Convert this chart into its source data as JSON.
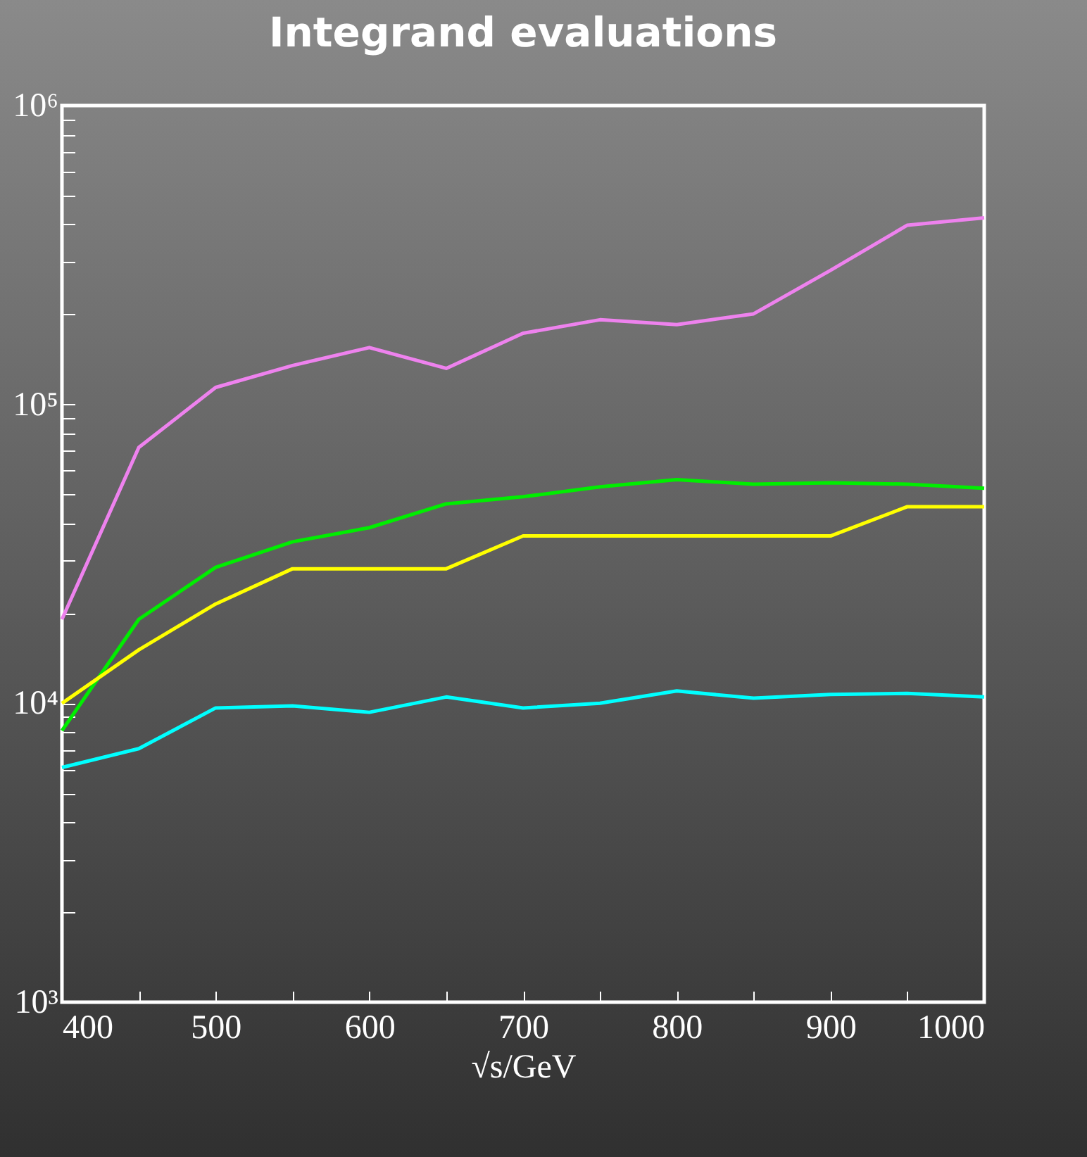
{
  "chart_data": {
    "type": "line",
    "title": "Integrand evaluations",
    "xlabel": "√s/GeV",
    "x": [
      400,
      450,
      500,
      550,
      600,
      650,
      700,
      750,
      800,
      850,
      900,
      950,
      1000
    ],
    "series": [
      {
        "color": "#ee82ee",
        "values": [
          19100,
          71800,
          114000,
          135000,
          155000,
          132000,
          173000,
          192000,
          185000,
          201000,
          281000,
          398000,
          421000
        ]
      },
      {
        "color": "#00ee00",
        "values": [
          8100,
          19100,
          28500,
          34700,
          38700,
          46500,
          49100,
          53000,
          56000,
          54100,
          54700,
          54100,
          52400
        ]
      },
      {
        "color": "#ffff00",
        "values": [
          10000,
          15100,
          21500,
          28200,
          28200,
          28200,
          36300,
          36300,
          36300,
          36300,
          36300,
          45500,
          45500
        ]
      },
      {
        "color": "#00ffff",
        "values": [
          6100,
          7050,
          9650,
          9800,
          9330,
          10500,
          9650,
          10000,
          11000,
          10400,
          10700,
          10800,
          10500
        ]
      }
    ],
    "log": "y",
    "xlim": [
      400,
      1000
    ],
    "ylim": [
      1000,
      1000000
    ],
    "xticks": [
      400,
      {
        "value": 450,
        "label": null
      },
      500,
      {
        "value": 550,
        "label": null
      },
      600,
      {
        "value": 650,
        "label": null
      },
      700,
      {
        "value": 750,
        "label": null
      },
      800,
      {
        "value": 850,
        "label": null
      },
      900,
      {
        "value": 950,
        "label": null
      },
      1000
    ],
    "yticks": [
      {
        "value": 1000,
        "label": "10³"
      },
      {
        "value": 2000,
        "label": null
      },
      {
        "value": 3000,
        "label": null
      },
      {
        "value": 4000,
        "label": null
      },
      {
        "value": 5000,
        "label": null
      },
      {
        "value": 6000,
        "label": null
      },
      {
        "value": 7000,
        "label": null
      },
      {
        "value": 8000,
        "label": null
      },
      {
        "value": 9000,
        "label": null
      },
      {
        "value": 10000,
        "label": "10⁴"
      },
      {
        "value": 20000,
        "label": null
      },
      {
        "value": 30000,
        "label": null
      },
      {
        "value": 40000,
        "label": null
      },
      {
        "value": 50000,
        "label": null
      },
      {
        "value": 60000,
        "label": null
      },
      {
        "value": 70000,
        "label": null
      },
      {
        "value": 80000,
        "label": null
      },
      {
        "value": 90000,
        "label": null
      },
      {
        "value": 100000,
        "label": "10⁵"
      },
      {
        "value": 200000,
        "label": null
      },
      {
        "value": 300000,
        "label": null
      },
      {
        "value": 400000,
        "label": null
      },
      {
        "value": 500000,
        "label": null
      },
      {
        "value": 600000,
        "label": null
      },
      {
        "value": 700000,
        "label": null
      },
      {
        "value": 800000,
        "label": null
      },
      {
        "value": 900000,
        "label": null
      },
      {
        "value": 1000000,
        "label": "10⁶"
      }
    ],
    "grid": false,
    "marker": "none",
    "line_style": "solid"
  }
}
